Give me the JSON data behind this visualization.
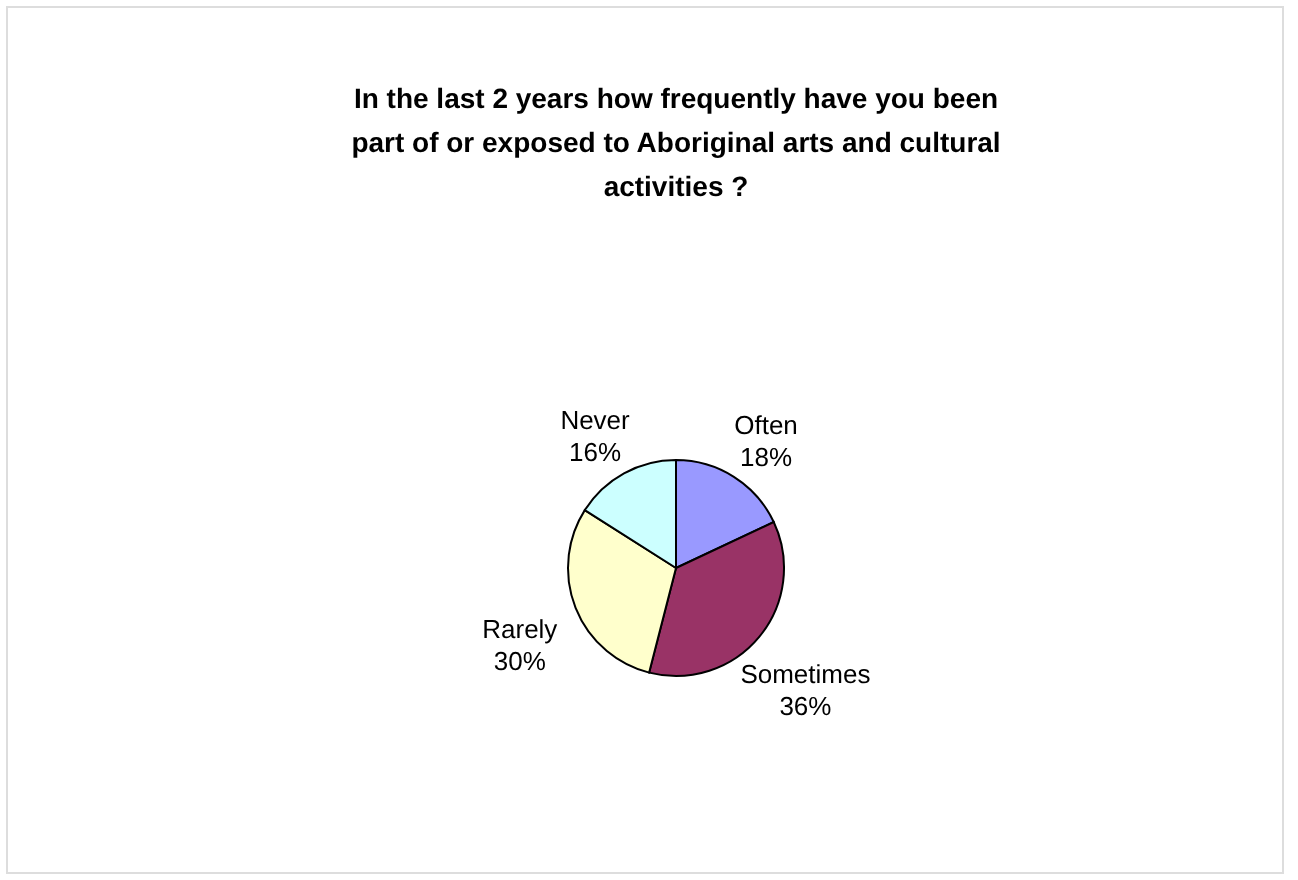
{
  "chart_data": {
    "type": "pie",
    "title": "In the last 2 years how frequently have you been part of or exposed to Aboriginal arts and cultural activities ?",
    "categories": [
      "Often",
      "Sometimes",
      "Rarely",
      "Never"
    ],
    "values": [
      18,
      36,
      30,
      16
    ],
    "value_labels": [
      "18%",
      "36%",
      "30%",
      "16%"
    ],
    "colors": [
      "#9999ff",
      "#993366",
      "#ffffcc",
      "#ccffff"
    ]
  }
}
